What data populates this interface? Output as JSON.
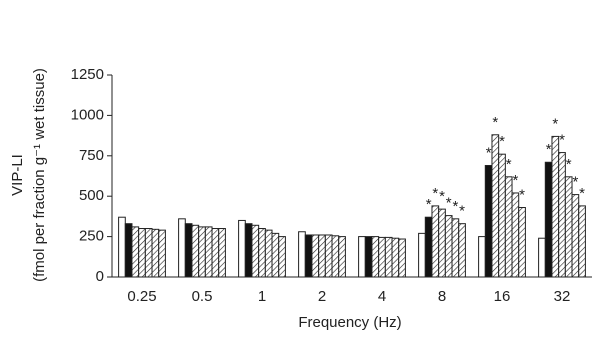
{
  "chart_data": {
    "type": "bar",
    "ylabel": [
      "VIP-LI",
      "(fmol per fraction g⁻¹ wet tissue)"
    ],
    "xlabel": "Frequency (Hz)",
    "categories": [
      "0.25",
      "0.5",
      "1",
      "2",
      "4",
      "8",
      "16",
      "32"
    ],
    "ylim": [
      0,
      1250
    ],
    "yticks": [
      0,
      250,
      500,
      750,
      1000,
      1250
    ],
    "series": [
      {
        "color": "#ffffff",
        "pattern": "none",
        "values": [
          370,
          360,
          350,
          280,
          250,
          270,
          250,
          240
        ],
        "significance": [
          null,
          null,
          null,
          null,
          null,
          null,
          null,
          null
        ]
      },
      {
        "color": "#111111",
        "pattern": "none",
        "values": [
          330,
          330,
          330,
          260,
          250,
          370,
          690,
          710
        ],
        "significance": [
          null,
          null,
          null,
          null,
          null,
          "*",
          "*",
          "*"
        ]
      },
      {
        "color": "#ffffff",
        "pattern": "hatch",
        "values": [
          310,
          320,
          320,
          260,
          250,
          440,
          880,
          870
        ],
        "significance": [
          null,
          null,
          null,
          null,
          null,
          "*",
          "*",
          "*"
        ]
      },
      {
        "color": "#ffffff",
        "pattern": "hatch",
        "values": [
          300,
          310,
          300,
          260,
          245,
          420,
          760,
          770
        ],
        "significance": [
          null,
          null,
          null,
          null,
          null,
          "*",
          "*",
          "*"
        ]
      },
      {
        "color": "#ffffff",
        "pattern": "hatch",
        "values": [
          300,
          310,
          290,
          260,
          245,
          380,
          620,
          620
        ],
        "significance": [
          null,
          null,
          null,
          null,
          null,
          "*",
          "*",
          "*"
        ]
      },
      {
        "color": "#ffffff",
        "pattern": "hatch",
        "values": [
          295,
          300,
          270,
          255,
          240,
          360,
          520,
          510
        ],
        "significance": [
          null,
          null,
          null,
          null,
          null,
          "*",
          "*",
          "*"
        ]
      },
      {
        "color": "#ffffff",
        "pattern": "hatch",
        "values": [
          290,
          300,
          250,
          250,
          235,
          330,
          430,
          440
        ],
        "significance": [
          null,
          null,
          null,
          null,
          null,
          "*",
          "*",
          "*"
        ]
      }
    ]
  }
}
